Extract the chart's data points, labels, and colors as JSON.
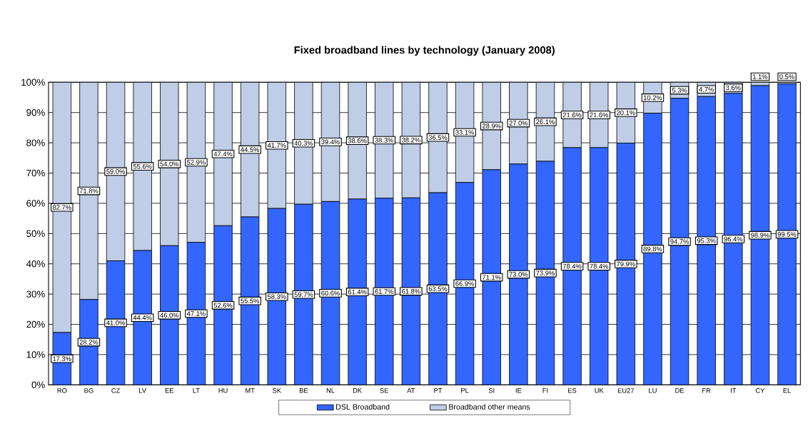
{
  "chart_data": {
    "type": "bar",
    "stacked": true,
    "title": "Fixed broadband lines by technology (January 2008)",
    "categories": [
      "RO",
      "BG",
      "CZ",
      "LV",
      "EE",
      "LT",
      "HU",
      "MT",
      "SK",
      "BE",
      "NL",
      "DK",
      "SE",
      "AT",
      "PT",
      "PL",
      "SI",
      "IE",
      "FI",
      "ES",
      "UK",
      "EU27",
      "LU",
      "DE",
      "FR",
      "IT",
      "CY",
      "EL"
    ],
    "series": [
      {
        "name": "DSL Broadband",
        "color": "#3366ff",
        "values": [
          17.3,
          28.2,
          41.0,
          44.4,
          46.0,
          47.1,
          52.6,
          55.5,
          58.3,
          59.7,
          60.6,
          61.4,
          61.7,
          61.8,
          63.5,
          66.9,
          71.1,
          73.0,
          73.9,
          78.4,
          78.4,
          79.9,
          89.8,
          94.7,
          95.3,
          96.4,
          98.9,
          99.5
        ],
        "value_labels": [
          "17.3%",
          "28.2%",
          "41.0%",
          "44.4%",
          "46.0%",
          "47.1%",
          "52.6%",
          "55.5%",
          "58.3%",
          "59.7%",
          "60.6%",
          "61.4%",
          "61.7%",
          "61.8%",
          "63.5%",
          "66.9%",
          "71.1%",
          "73.0%",
          "73.9%",
          "78.4%",
          "78.4%",
          "79.9%",
          "89.8%",
          "94.7%",
          "95.3%",
          "96.4%",
          "98.9%",
          "99.5%"
        ]
      },
      {
        "name": "Broadband other means",
        "color": "#bfcde6",
        "values": [
          82.7,
          71.8,
          59.0,
          55.6,
          54.0,
          52.9,
          47.4,
          44.5,
          41.7,
          40.3,
          39.4,
          38.6,
          38.3,
          38.2,
          36.5,
          33.1,
          28.9,
          27.0,
          26.1,
          21.6,
          21.6,
          20.1,
          10.2,
          5.3,
          4.7,
          3.6,
          1.1,
          0.5
        ],
        "value_labels": [
          "82.7%",
          "71.8%",
          "59.0%",
          "55.6%",
          "54.0%",
          "52.9%",
          "47.4%",
          "44.5%",
          "41.7%",
          "40.3%",
          "39.4%",
          "38.6%",
          "38.3%",
          "38.2%",
          "36.5%",
          "33.1%",
          "28.9%",
          "27.0%",
          "26.1%",
          "21.6%",
          "21.6%",
          "20.1%",
          "10.2%",
          "5.3%",
          "4.7%",
          "3.6%",
          "1.1%",
          "0.5%"
        ]
      }
    ],
    "ylim": [
      0,
      100
    ],
    "yticks": [
      {
        "value": 0,
        "label": "0%"
      },
      {
        "value": 10,
        "label": "10%"
      },
      {
        "value": 20,
        "label": "20%"
      },
      {
        "value": 30,
        "label": "30%"
      },
      {
        "value": 40,
        "label": "40%"
      },
      {
        "value": 50,
        "label": "50%"
      },
      {
        "value": 60,
        "label": "60%"
      },
      {
        "value": 70,
        "label": "70%"
      },
      {
        "value": 80,
        "label": "80%"
      },
      {
        "value": 90,
        "label": "90%"
      },
      {
        "value": 100,
        "label": "100%"
      }
    ],
    "grid": "y",
    "legend": "bottom"
  }
}
